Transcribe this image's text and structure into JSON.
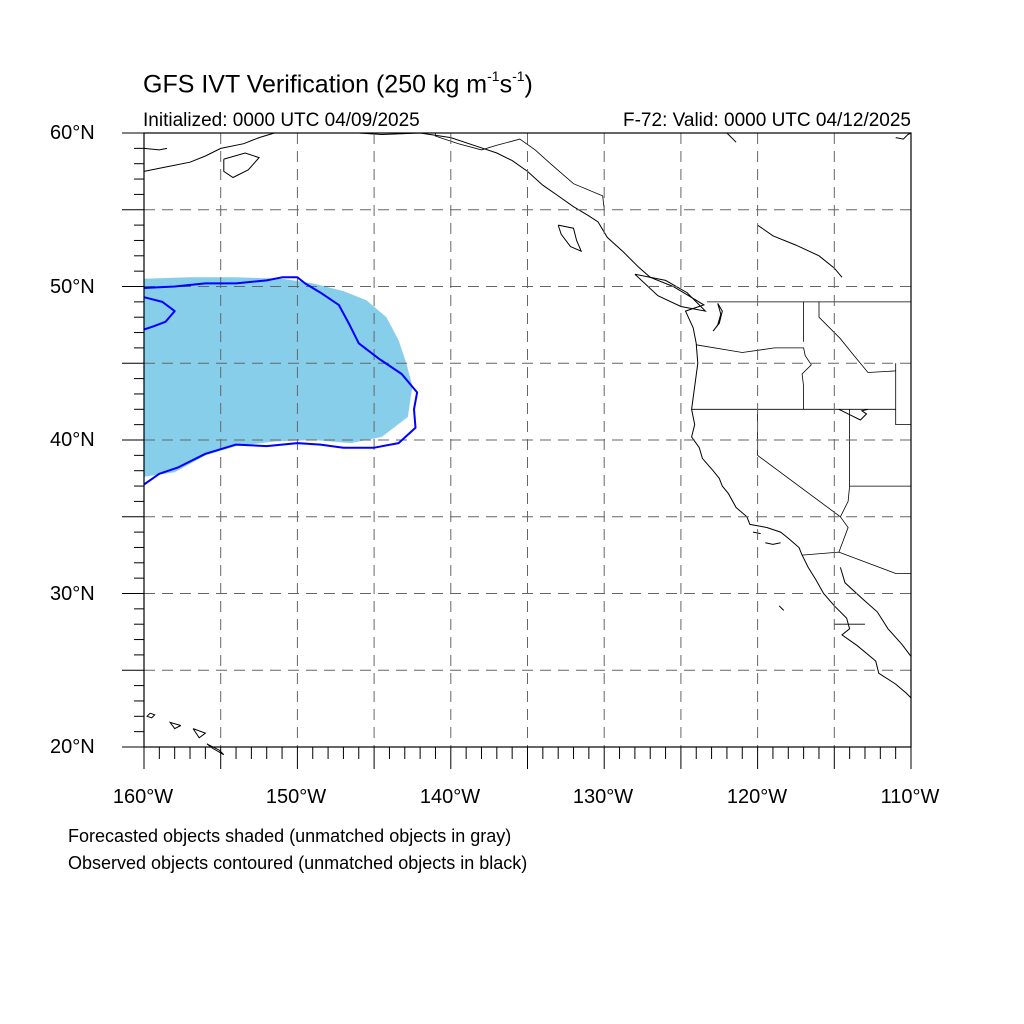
{
  "title_main": "GFS IVT Verification (250 kg m",
  "title_exp1": "-1",
  "title_mid": "s",
  "title_exp2": "-1",
  "title_end": ")",
  "initialized": "Initialized: 0000 UTC 04/09/2025",
  "valid": "F-72: Valid: 0000 UTC 04/12/2025",
  "lat_labels": [
    "60°N",
    "50°N",
    "40°N",
    "30°N",
    "20°N"
  ],
  "lon_labels": [
    "160°W",
    "150°W",
    "140°W",
    "130°W",
    "120°W",
    "110°W"
  ],
  "notes": {
    "line1": "Forecasted objects shaded (unmatched objects in gray)",
    "line2": "Observed objects contoured (unmatched objects in black)"
  },
  "map": {
    "lon_range": [
      -160,
      -110
    ],
    "lat_range": [
      20,
      60
    ],
    "grid_interval_deg": 5,
    "colors": {
      "forecast_fill": "#87ceeb",
      "observed_contour": "#0000ff",
      "coastline": "#000000",
      "grid": "#666666"
    },
    "forecast_object": [
      [
        -160,
        50.5
      ],
      [
        -157,
        50.6
      ],
      [
        -154,
        50.6
      ],
      [
        -151,
        50.5
      ],
      [
        -149,
        50.2
      ],
      [
        -147,
        49.7
      ],
      [
        -145.5,
        49.1
      ],
      [
        -144.2,
        48.0
      ],
      [
        -143.4,
        46.5
      ],
      [
        -142.9,
        45.0
      ],
      [
        -142.5,
        43.5
      ],
      [
        -142.8,
        41.5
      ],
      [
        -144.5,
        40.2
      ],
      [
        -146.5,
        39.8
      ],
      [
        -149,
        40.0
      ],
      [
        -151.5,
        39.9
      ],
      [
        -154,
        39.6
      ],
      [
        -156,
        39.0
      ],
      [
        -158,
        37.9
      ],
      [
        -160,
        37.6
      ]
    ],
    "observed_object": [
      [
        -160,
        49.9
      ],
      [
        -158,
        50.0
      ],
      [
        -156,
        50.2
      ],
      [
        -154,
        50.2
      ],
      [
        -152,
        50.4
      ],
      [
        -151,
        50.6
      ],
      [
        -150,
        50.6
      ],
      [
        -149.5,
        50.2
      ],
      [
        -148.5,
        49.6
      ],
      [
        -147.3,
        48.8
      ],
      [
        -146.6,
        47.5
      ],
      [
        -146,
        46.3
      ],
      [
        -144.7,
        45.3
      ],
      [
        -143.2,
        44.3
      ],
      [
        -142.2,
        43.1
      ],
      [
        -142.4,
        42.0
      ],
      [
        -142.3,
        40.8
      ],
      [
        -143.4,
        39.8
      ],
      [
        -145,
        39.5
      ],
      [
        -147,
        39.5
      ],
      [
        -148.5,
        39.7
      ],
      [
        -150,
        39.8
      ],
      [
        -152,
        39.6
      ],
      [
        -154,
        39.7
      ],
      [
        -156,
        39.1
      ],
      [
        -157.8,
        38.2
      ],
      [
        -159,
        37.8
      ],
      [
        -160,
        37.1
      ]
    ],
    "observed_inner_lobe": [
      [
        -160,
        49.3
      ],
      [
        -158.8,
        49.0
      ],
      [
        -158,
        48.4
      ],
      [
        -158.6,
        47.7
      ],
      [
        -159.4,
        47.4
      ],
      [
        -160,
        47.2
      ]
    ],
    "coastlines": [
      [
        [
          -160,
          57.5
        ],
        [
          -158.5,
          57.8
        ],
        [
          -157,
          58.1
        ],
        [
          -156,
          58.5
        ],
        [
          -155,
          59.0
        ],
        [
          -153.5,
          59.3
        ],
        [
          -152.5,
          59.7
        ],
        [
          -151.5,
          60.0
        ]
      ],
      [
        [
          -160,
          59.0
        ],
        [
          -159,
          58.9
        ],
        [
          -158.5,
          59.0
        ]
      ],
      [
        [
          -154.8,
          58.3
        ],
        [
          -153.4,
          58.7
        ],
        [
          -152.5,
          58.4
        ],
        [
          -153.2,
          57.6
        ],
        [
          -154.2,
          57.1
        ],
        [
          -154.8,
          57.5
        ],
        [
          -154.8,
          58.3
        ]
      ],
      [
        [
          -146,
          60.0
        ],
        [
          -144.5,
          59.9
        ],
        [
          -142,
          60.0
        ],
        [
          -140,
          59.7
        ],
        [
          -138.5,
          59.2
        ],
        [
          -137,
          58.7
        ],
        [
          -136,
          58.2
        ],
        [
          -135,
          57.5
        ],
        [
          -134,
          56.6
        ],
        [
          -133,
          55.9
        ],
        [
          -132,
          55.2
        ],
        [
          -131,
          54.6
        ],
        [
          -130.4,
          54.2
        ],
        [
          -129.8,
          53.2
        ],
        [
          -128.8,
          52.3
        ],
        [
          -127.8,
          51.3
        ],
        [
          -127,
          50.6
        ],
        [
          -125.5,
          50.0
        ],
        [
          -124.5,
          49.4
        ],
        [
          -123.5,
          48.8
        ],
        [
          -124.7,
          48.4
        ],
        [
          -124.2,
          47.3
        ],
        [
          -124.0,
          46.3
        ],
        [
          -123.9,
          45.0
        ],
        [
          -124.1,
          43.5
        ],
        [
          -124.3,
          42.0
        ],
        [
          -124.1,
          41.0
        ],
        [
          -124.3,
          40.2
        ],
        [
          -123.8,
          39.5
        ],
        [
          -123.6,
          38.8
        ],
        [
          -122.9,
          38.0
        ],
        [
          -122.5,
          37.5
        ],
        [
          -122.3,
          37.0
        ],
        [
          -121.9,
          36.5
        ],
        [
          -121.4,
          35.6
        ],
        [
          -120.7,
          35.0
        ],
        [
          -120.5,
          34.5
        ],
        [
          -119.4,
          34.3
        ],
        [
          -118.5,
          34.0
        ],
        [
          -118.0,
          33.6
        ],
        [
          -117.3,
          33.0
        ],
        [
          -117.1,
          32.5
        ],
        [
          -116.7,
          31.7
        ],
        [
          -116.2,
          30.9
        ],
        [
          -115.7,
          30.0
        ],
        [
          -115.0,
          29.2
        ],
        [
          -114.2,
          28.4
        ],
        [
          -114.0,
          27.7
        ],
        [
          -114.5,
          27.3
        ],
        [
          -113.5,
          26.6
        ],
        [
          -112.3,
          25.6
        ],
        [
          -112.1,
          24.8
        ],
        [
          -111.0,
          24.1
        ],
        [
          -110.3,
          23.5
        ],
        [
          -110.0,
          23.2
        ]
      ],
      [
        [
          -114.6,
          31.7
        ],
        [
          -114.3,
          30.7
        ],
        [
          -113.1,
          29.6
        ],
        [
          -112.2,
          28.8
        ],
        [
          -111.5,
          27.7
        ],
        [
          -110.6,
          26.7
        ],
        [
          -110.0,
          25.9
        ]
      ],
      [
        [
          -133.0,
          54.0
        ],
        [
          -132.0,
          53.8
        ],
        [
          -131.8,
          53.0
        ],
        [
          -131.5,
          52.3
        ],
        [
          -132.2,
          52.6
        ],
        [
          -132.8,
          53.4
        ],
        [
          -133.0,
          54.0
        ]
      ],
      [
        [
          -128.0,
          50.8
        ],
        [
          -126.0,
          50.4
        ],
        [
          -124.6,
          49.6
        ],
        [
          -123.4,
          48.4
        ],
        [
          -125.0,
          48.7
        ],
        [
          -126.5,
          49.4
        ],
        [
          -128.0,
          50.8
        ]
      ],
      [
        [
          -122.6,
          48.9
        ],
        [
          -122.4,
          48.2
        ],
        [
          -122.6,
          47.5
        ],
        [
          -122.9,
          47.1
        ],
        [
          -122.5,
          47.6
        ],
        [
          -122.3,
          48.4
        ],
        [
          -122.6,
          48.9
        ]
      ],
      [
        [
          -110.0,
          60.0
        ],
        [
          -110.2,
          59.9
        ],
        [
          -110.5,
          59.6
        ],
        [
          -111.0,
          59.7
        ]
      ],
      [
        [
          -122.0,
          60.0
        ],
        [
          -121.4,
          59.4
        ]
      ],
      [
        [
          -120.0,
          54.0
        ],
        [
          -119.0,
          53.3
        ],
        [
          -117.5,
          52.7
        ],
        [
          -116.0,
          52.0
        ],
        [
          -115.0,
          51.2
        ],
        [
          -114.5,
          50.6
        ]
      ],
      [
        [
          -114.7,
          42.0
        ],
        [
          -113.9,
          41.6
        ],
        [
          -113.3,
          41.3
        ],
        [
          -112.9,
          41.7
        ],
        [
          -113.2,
          41.9
        ],
        [
          -112.8,
          42.0
        ]
      ],
      [
        [
          -119.5,
          33.3
        ],
        [
          -119.0,
          33.2
        ],
        [
          -118.5,
          33.3
        ]
      ],
      [
        [
          -120.3,
          34.0
        ],
        [
          -119.8,
          33.9
        ]
      ],
      [
        [
          -157.6,
          21.4
        ],
        [
          -158.3,
          21.6
        ],
        [
          -158.0,
          21.2
        ],
        [
          -157.6,
          21.4
        ]
      ],
      [
        [
          -159.6,
          22.2
        ],
        [
          -159.3,
          22.1
        ],
        [
          -159.5,
          21.9
        ],
        [
          -159.8,
          22.0
        ],
        [
          -159.6,
          22.2
        ]
      ],
      [
        [
          -156.8,
          21.2
        ],
        [
          -156.0,
          20.9
        ],
        [
          -156.4,
          20.6
        ],
        [
          -156.8,
          21.2
        ]
      ],
      [
        [
          -155.9,
          20.2
        ],
        [
          -155.1,
          19.8
        ],
        [
          -154.8,
          19.5
        ],
        [
          -155.5,
          19.9
        ],
        [
          -155.9,
          20.2
        ]
      ],
      [
        [
          -118.6,
          29.2
        ],
        [
          -118.3,
          28.9
        ]
      ]
    ],
    "political_lines": [
      [
        [
          -141,
          60.0
        ],
        [
          -141,
          59.8
        ],
        [
          -139.5,
          59.3
        ],
        [
          -138,
          58.9
        ],
        [
          -137,
          59.2
        ],
        [
          -135.5,
          59.6
        ],
        [
          -134.5,
          58.9
        ],
        [
          -133.5,
          58.0
        ],
        [
          -132,
          56.7
        ],
        [
          -130.1,
          55.9
        ],
        [
          -130.0,
          55.0
        ]
      ],
      [
        [
          -123.3,
          49.0
        ],
        [
          -110.0,
          49.0
        ]
      ],
      [
        [
          -124.0,
          46.2
        ],
        [
          -121.0,
          45.7
        ],
        [
          -118.9,
          46.0
        ],
        [
          -117.0,
          46.0
        ],
        [
          -116.9,
          45.5
        ],
        [
          -116.5,
          44.9
        ],
        [
          -117.1,
          44.3
        ],
        [
          -117.0,
          43.5
        ],
        [
          -117.0,
          42.0
        ]
      ],
      [
        [
          -117.0,
          49.0
        ],
        [
          -117.0,
          46.4
        ]
      ],
      [
        [
          -124.3,
          42.0
        ],
        [
          -114.0,
          42.0
        ],
        [
          -111.0,
          42.0
        ]
      ],
      [
        [
          -116.0,
          49.0
        ],
        [
          -116.0,
          48.0
        ],
        [
          -114.6,
          46.6
        ],
        [
          -113.8,
          45.6
        ],
        [
          -112.8,
          44.4
        ],
        [
          -111.0,
          44.5
        ]
      ],
      [
        [
          -111.0,
          45.0
        ],
        [
          -111.0,
          41.0
        ],
        [
          -110.0,
          41.0
        ]
      ],
      [
        [
          -120.0,
          42.0
        ],
        [
          -120.0,
          39.0
        ],
        [
          -114.6,
          35.0
        ]
      ],
      [
        [
          -114.0,
          42.0
        ],
        [
          -114.0,
          37.0
        ],
        [
          -114.1,
          36.0
        ],
        [
          -114.6,
          35.0
        ]
      ],
      [
        [
          -114.0,
          37.0
        ],
        [
          -110.0,
          37.0
        ]
      ],
      [
        [
          -117.1,
          32.5
        ],
        [
          -114.7,
          32.7
        ],
        [
          -111.0,
          31.3
        ],
        [
          -110.0,
          31.3
        ]
      ],
      [
        [
          -114.6,
          35.0
        ],
        [
          -114.1,
          34.3
        ],
        [
          -114.7,
          32.7
        ]
      ],
      [
        [
          -115.0,
          28.0
        ],
        [
          -113.0,
          28.0
        ]
      ]
    ]
  }
}
